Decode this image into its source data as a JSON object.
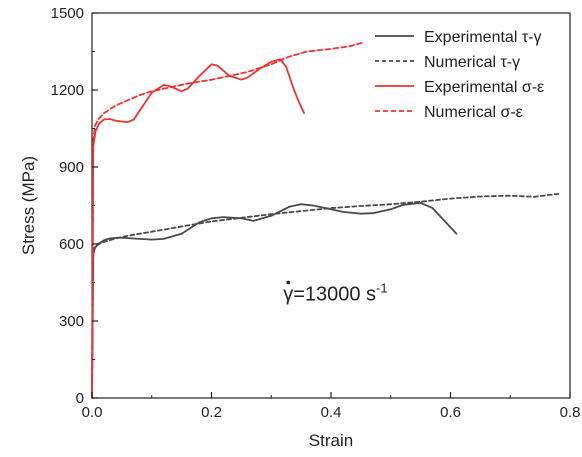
{
  "chart_data": {
    "type": "line",
    "xlabel": "Strain",
    "ylabel": "Stress (MPa)",
    "xlim": [
      0,
      0.8
    ],
    "ylim": [
      0,
      1500
    ],
    "x_ticks": [
      0.0,
      0.2,
      0.4,
      0.6,
      0.8
    ],
    "x_tick_labels": [
      "0.0",
      "0.2",
      "0.4",
      "0.6",
      "0.8"
    ],
    "y_ticks": [
      0,
      300,
      600,
      900,
      1200,
      1500
    ],
    "y_tick_labels": [
      "0",
      "300",
      "600",
      "900",
      "1200",
      "1500"
    ],
    "grid": false,
    "legend_position": "top-right",
    "annotation": {
      "symbol": "γ",
      "text": "=13000 s",
      "superscript": "-1",
      "anchor": [
        0.32,
        380
      ]
    },
    "series": [
      {
        "name": "Experimental τ-γ",
        "color": "#4a4a4a",
        "dash": "solid",
        "x": [
          0.0,
          0.002,
          0.005,
          0.01,
          0.02,
          0.03,
          0.045,
          0.06,
          0.08,
          0.1,
          0.12,
          0.15,
          0.18,
          0.2,
          0.22,
          0.25,
          0.27,
          0.3,
          0.33,
          0.35,
          0.37,
          0.4,
          0.42,
          0.45,
          0.47,
          0.5,
          0.52,
          0.55,
          0.57,
          0.59,
          0.61
        ],
        "y": [
          0,
          560,
          585,
          600,
          615,
          622,
          625,
          623,
          620,
          617,
          620,
          640,
          685,
          700,
          705,
          700,
          690,
          710,
          745,
          755,
          750,
          735,
          725,
          718,
          720,
          735,
          752,
          760,
          740,
          690,
          640
        ]
      },
      {
        "name": "Numerical τ-γ",
        "color": "#4a4a4a",
        "dash": "4,3",
        "x": [
          0.0,
          0.002,
          0.005,
          0.01,
          0.02,
          0.04,
          0.06,
          0.08,
          0.1,
          0.13,
          0.16,
          0.2,
          0.25,
          0.3,
          0.35,
          0.4,
          0.45,
          0.5,
          0.55,
          0.6,
          0.65,
          0.7,
          0.74,
          0.78
        ],
        "y": [
          0,
          570,
          590,
          598,
          608,
          622,
          632,
          640,
          648,
          660,
          672,
          688,
          702,
          716,
          728,
          740,
          748,
          755,
          765,
          777,
          785,
          788,
          784,
          795
        ]
      },
      {
        "name": "Experimental σ-ε",
        "color": "#ee3333",
        "dash": "solid",
        "x": [
          0.0,
          0.002,
          0.006,
          0.012,
          0.02,
          0.03,
          0.04,
          0.06,
          0.07,
          0.08,
          0.1,
          0.12,
          0.13,
          0.15,
          0.16,
          0.18,
          0.2,
          0.21,
          0.23,
          0.25,
          0.26,
          0.28,
          0.3,
          0.315,
          0.325,
          0.335,
          0.345,
          0.355
        ],
        "y": [
          0,
          980,
          1040,
          1070,
          1085,
          1087,
          1080,
          1075,
          1085,
          1120,
          1190,
          1220,
          1215,
          1195,
          1205,
          1255,
          1300,
          1295,
          1255,
          1240,
          1248,
          1282,
          1310,
          1320,
          1290,
          1220,
          1160,
          1110
        ]
      },
      {
        "name": "Numerical σ-ε",
        "color": "#ee3333",
        "dash": "5,3",
        "x": [
          0.0,
          0.002,
          0.005,
          0.01,
          0.02,
          0.04,
          0.06,
          0.08,
          0.1,
          0.13,
          0.16,
          0.2,
          0.23,
          0.26,
          0.3,
          0.33,
          0.36,
          0.4,
          0.43,
          0.455
        ],
        "y": [
          0,
          1000,
          1060,
          1085,
          1110,
          1140,
          1160,
          1180,
          1195,
          1210,
          1225,
          1240,
          1255,
          1270,
          1300,
          1330,
          1350,
          1360,
          1370,
          1385
        ]
      }
    ]
  }
}
